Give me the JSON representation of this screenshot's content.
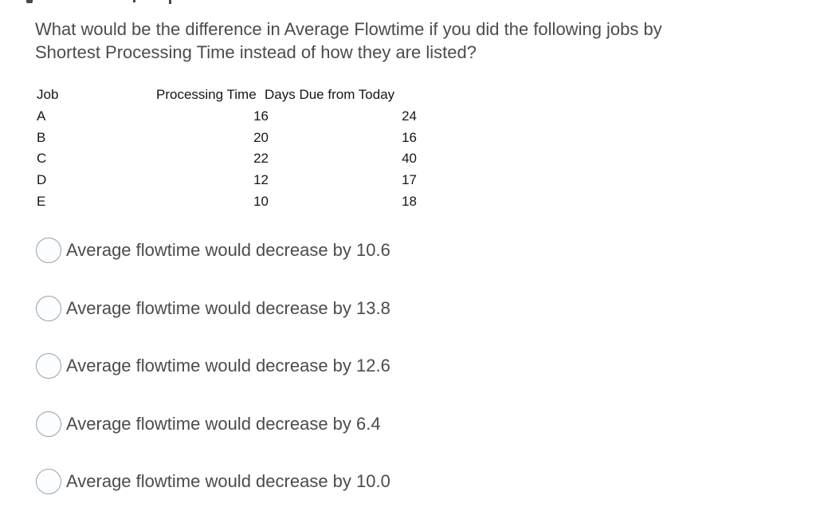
{
  "colors": {
    "background": "#ffffff",
    "question_text": "#494c4e",
    "table_text": "#161616",
    "option_text": "#494c4e",
    "radio_border": "#9aa1a8",
    "radio_fill": "#fbfdff"
  },
  "question": {
    "text": "What would be the difference in Average Flowtime if you did the following jobs by Shortest Processing Time instead of how they are listed?",
    "text_lines": [
      "What would be the difference in Average Flowtime if you did the following jobs by",
      "Shortest Processing Time instead of how they are listed?"
    ]
  },
  "table": {
    "columns": [
      "Job",
      "Processing Time",
      "Days Due from Today"
    ],
    "rows": [
      {
        "job": "A",
        "processing_time": 16,
        "days_due": 24
      },
      {
        "job": "B",
        "processing_time": 20,
        "days_due": 16
      },
      {
        "job": "C",
        "processing_time": 22,
        "days_due": 40
      },
      {
        "job": "D",
        "processing_time": 12,
        "days_due": 17
      },
      {
        "job": "E",
        "processing_time": 10,
        "days_due": 18
      }
    ]
  },
  "options": [
    {
      "label": "Average flowtime would decrease by 10.6",
      "selected": false
    },
    {
      "label": "Average flowtime would decrease by 13.8",
      "selected": false
    },
    {
      "label": "Average flowtime would decrease by 12.6",
      "selected": false
    },
    {
      "label": "Average flowtime would decrease by 6.4",
      "selected": false
    },
    {
      "label": "Average flowtime would decrease by 10.0",
      "selected": false
    }
  ]
}
